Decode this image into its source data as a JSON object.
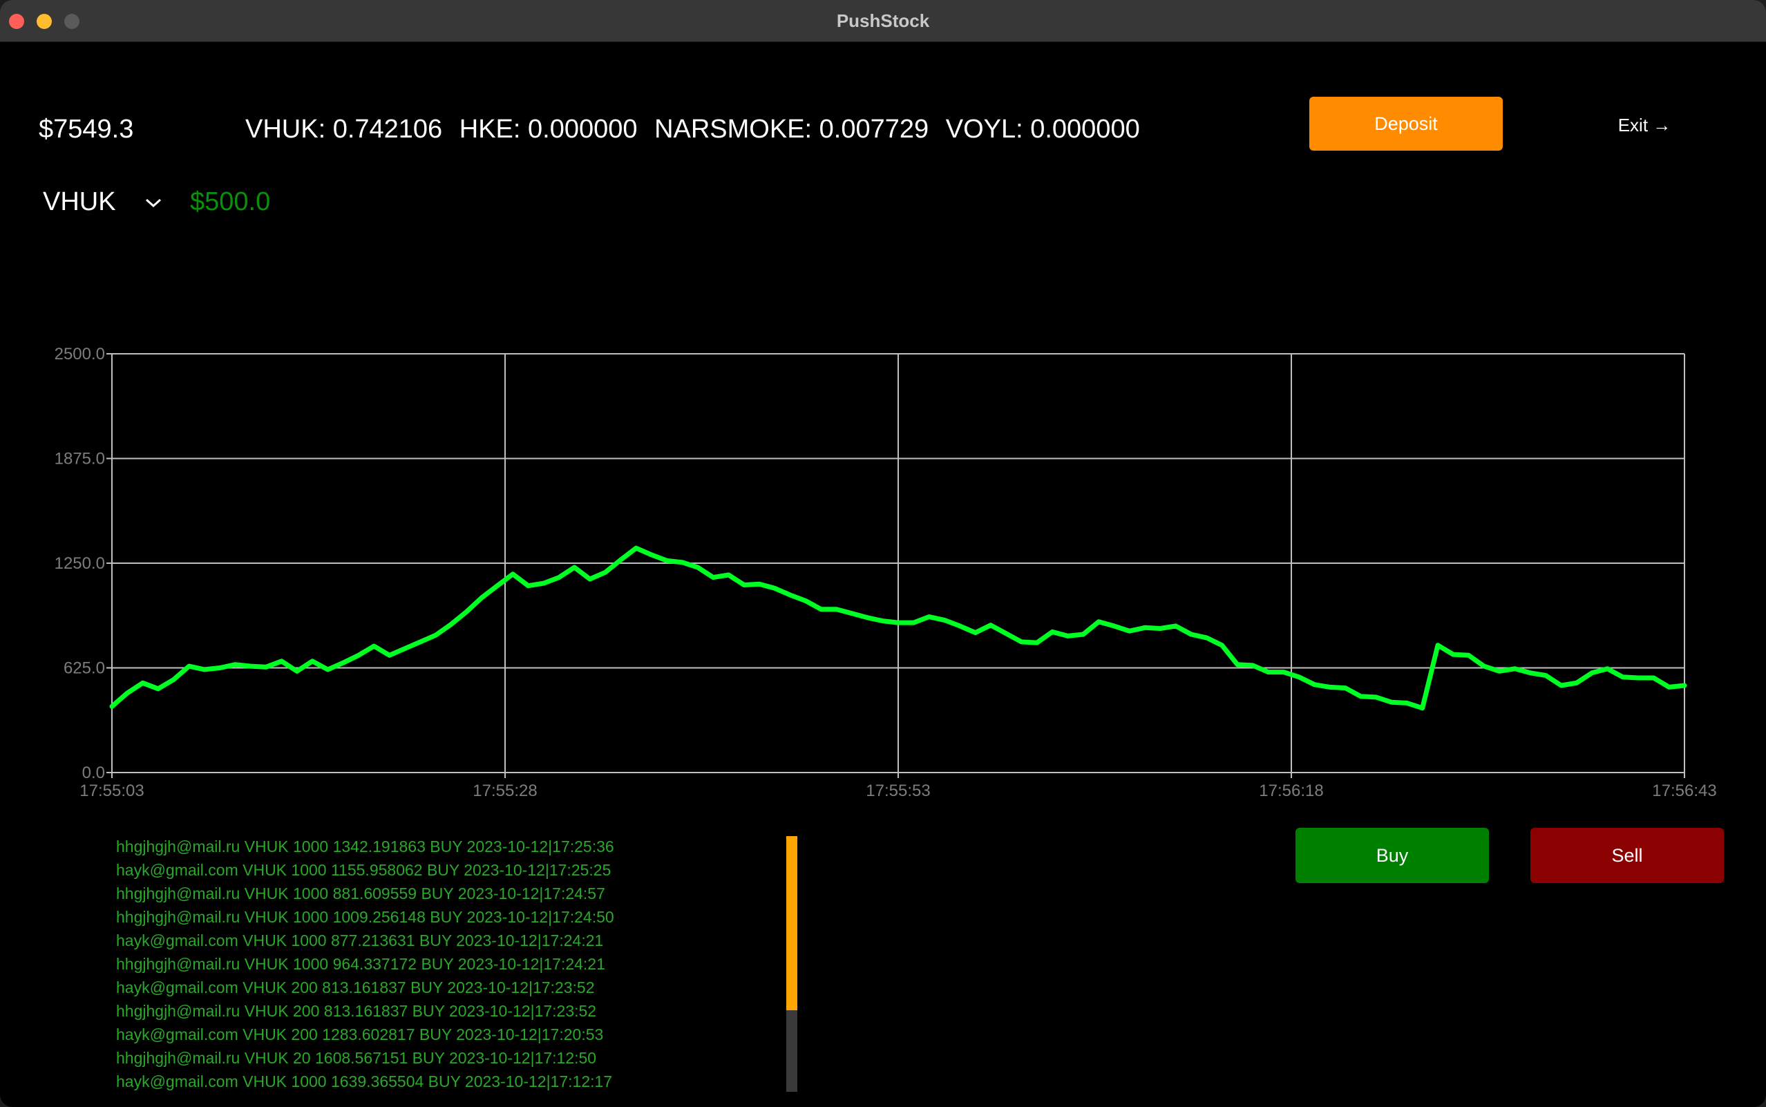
{
  "window": {
    "title": "PushStock"
  },
  "header": {
    "balance": "$7549.3",
    "holdings": [
      "VHUK: 0.742106",
      "HKE: 0.000000",
      "NARSMOKE: 0.007729",
      "VOYL: 0.000000"
    ],
    "deposit_label": "Deposit",
    "exit_label": "Exit →"
  },
  "selector": {
    "selected_stock": "VHUK",
    "price": "$500.0",
    "price_color": "#0a8f0a"
  },
  "colors": {
    "line": "#00ff22",
    "deposit": "#ff8c00",
    "buy": "#008000",
    "sell": "#8b0000",
    "log_text": "#2aa82a",
    "scroll_thumb": "#ffa500"
  },
  "chart_data": {
    "type": "line",
    "title": "",
    "xlabel": "",
    "ylabel": "",
    "ylim": [
      0,
      2500
    ],
    "y_ticks": [
      "0.0",
      "625.0",
      "1250.0",
      "1875.0",
      "2500.0"
    ],
    "x_ticks": [
      "17:55:03",
      "17:55:28",
      "17:55:53",
      "17:56:18",
      "17:56:43"
    ],
    "x_range_seconds": 100,
    "grid": true,
    "series": [
      {
        "values": [
          395,
          475,
          535,
          500,
          555,
          635,
          615,
          625,
          645,
          635,
          630,
          665,
          605,
          665,
          615,
          655,
          700,
          755,
          700,
          740,
          780,
          820,
          885,
          960,
          1045,
          1115,
          1185,
          1115,
          1130,
          1165,
          1225,
          1155,
          1195,
          1270,
          1340,
          1300,
          1265,
          1255,
          1225,
          1165,
          1180,
          1120,
          1125,
          1100,
          1060,
          1025,
          975,
          975,
          950,
          925,
          905,
          895,
          895,
          930,
          910,
          875,
          835,
          880,
          830,
          780,
          775,
          840,
          815,
          825,
          900,
          875,
          845,
          865,
          860,
          875,
          825,
          805,
          760,
          645,
          640,
          600,
          600,
          570,
          525,
          510,
          505,
          455,
          450,
          420,
          415,
          385,
          760,
          705,
          700,
          635,
          605,
          620,
          595,
          580,
          520,
          535,
          595,
          620,
          570,
          565,
          565,
          510,
          520
        ]
      }
    ]
  },
  "trades": [
    "hhgjhgjh@mail.ru VHUK 1000 1342.191863 BUY 2023-10-12|17:25:36",
    "hayk@gmail.com VHUK 1000 1155.958062 BUY 2023-10-12|17:25:25",
    "hhgjhgjh@mail.ru VHUK 1000 881.609559 BUY 2023-10-12|17:24:57",
    "hhgjhgjh@mail.ru VHUK 1000 1009.256148 BUY 2023-10-12|17:24:50",
    "hayk@gmail.com VHUK 1000 877.213631 BUY 2023-10-12|17:24:21",
    "hhgjhgjh@mail.ru VHUK 1000 964.337172 BUY 2023-10-12|17:24:21",
    "hayk@gmail.com VHUK 200 813.161837 BUY 2023-10-12|17:23:52",
    "hhgjhgjh@mail.ru VHUK 200 813.161837 BUY 2023-10-12|17:23:52",
    "hayk@gmail.com VHUK 200 1283.602817 BUY 2023-10-12|17:20:53",
    "hhgjhgjh@mail.ru VHUK 20 1608.567151 BUY 2023-10-12|17:12:50",
    "hayk@gmail.com VHUK 1000 1639.365504 BUY 2023-10-12|17:12:17"
  ],
  "scroll": {
    "thumb_fraction": 0.68
  },
  "actions": {
    "buy_label": "Buy",
    "sell_label": "Sell"
  }
}
